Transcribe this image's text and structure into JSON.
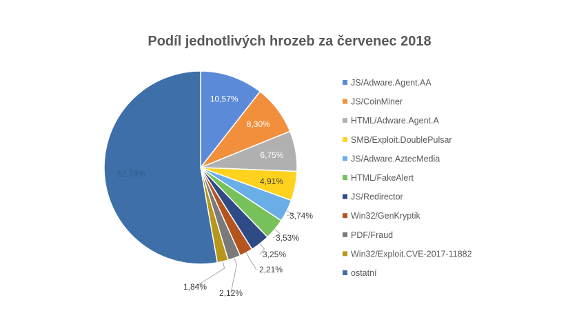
{
  "chart_data": {
    "type": "pie",
    "title": "Podíl jednotlivých hrozeb za červenec 2018",
    "legend_position": "right",
    "series": [
      {
        "name": "JS/Adware.Agent.AA",
        "value": 10.57,
        "label": "10,57%",
        "color": "#5b8ad8"
      },
      {
        "name": "JS/CoinMiner",
        "value": 8.3,
        "label": "8,30%",
        "color": "#f28f3c"
      },
      {
        "name": "HTML/Adware.Agent.A",
        "value": 6.75,
        "label": "6,75%",
        "color": "#b0b0b0"
      },
      {
        "name": "SMB/Exploit.DoublePulsar",
        "value": 4.91,
        "label": "4,91%",
        "color": "#ffd21f"
      },
      {
        "name": "JS/Adware.AztecMedia",
        "value": 3.74,
        "label": "3,74%",
        "color": "#6aaee8"
      },
      {
        "name": "HTML/FakeAlert",
        "value": 3.53,
        "label": "3,53%",
        "color": "#77c15a"
      },
      {
        "name": "JS/Redirector",
        "value": 3.25,
        "label": "3,25%",
        "color": "#2f4b86"
      },
      {
        "name": "Win32/GenKryptik",
        "value": 2.21,
        "label": "2,21%",
        "color": "#b4541f"
      },
      {
        "name": "PDF/Fraud",
        "value": 2.12,
        "label": "2,12%",
        "color": "#7a7a7a"
      },
      {
        "name": "Win32/Exploit.CVE-2017-11882",
        "value": 1.84,
        "label": "1,84%",
        "color": "#b8961c"
      },
      {
        "name": "ostatní",
        "value": 52.78,
        "label": "52,78%",
        "color": "#3e6fa8"
      }
    ]
  }
}
